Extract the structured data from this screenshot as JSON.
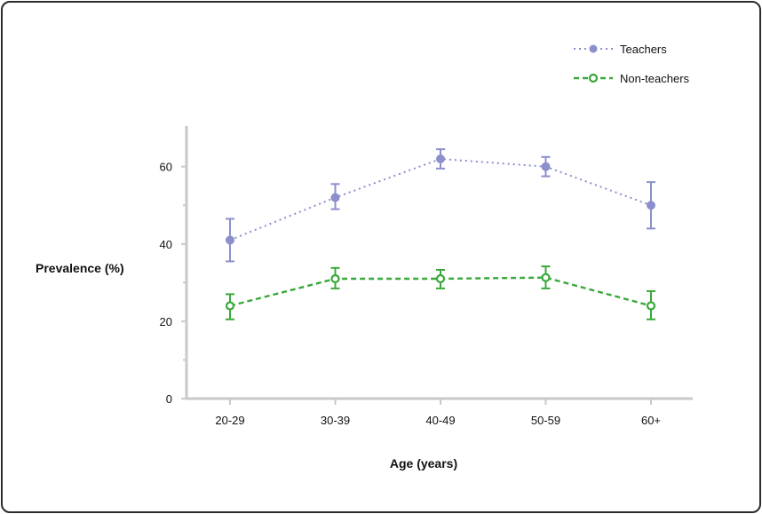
{
  "chart_data": {
    "type": "line",
    "title": "",
    "xlabel": "Age (years)",
    "ylabel": "Prevalence (%)",
    "categories": [
      "20-29",
      "30-39",
      "40-49",
      "50-59",
      "60+"
    ],
    "ylim": [
      0,
      70
    ],
    "yticks": [
      0,
      20,
      40,
      60
    ],
    "grid": false,
    "legend_position": "top-right",
    "series": [
      {
        "name": "Teachers",
        "color": "#8b8fcb",
        "marker": "filled-circle",
        "linestyle": "dotted",
        "values": [
          41,
          52,
          62,
          60,
          50
        ],
        "err_low": [
          35.5,
          49,
          59.5,
          57.5,
          44
        ],
        "err_high": [
          46.5,
          55.5,
          64.5,
          62.5,
          56
        ]
      },
      {
        "name": "Non-teachers",
        "color": "#3aa83a",
        "marker": "open-circle",
        "linestyle": "dashed",
        "values": [
          24,
          31,
          31,
          31.3,
          24
        ],
        "err_low": [
          20.5,
          28.5,
          28.5,
          28.5,
          20.5
        ],
        "err_high": [
          27,
          33.8,
          33.3,
          34.2,
          27.8
        ]
      }
    ]
  }
}
